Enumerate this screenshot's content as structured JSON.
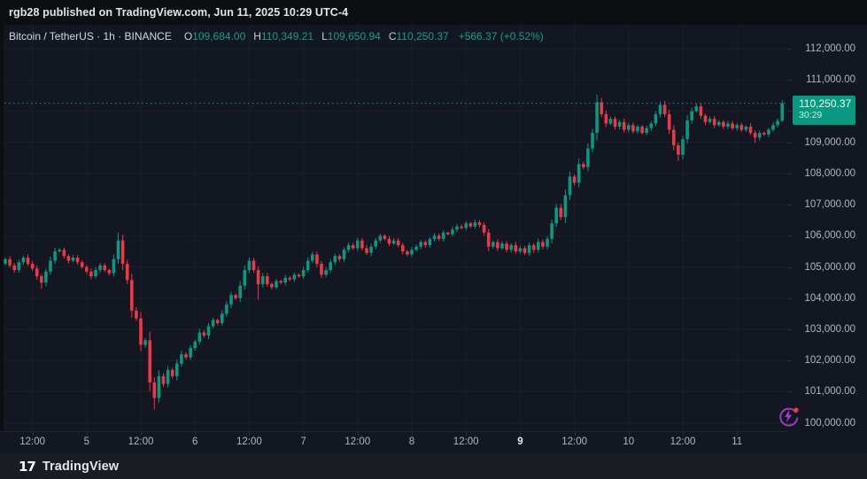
{
  "header": {
    "published_line": "rgb28 published on TradingView.com, Jun 11, 2025 10:29 UTC-4"
  },
  "legend": {
    "title": "Bitcoin / TetherUS · 1h · BINANCE",
    "ohlc": [
      {
        "label": "O",
        "value": "109,684.00"
      },
      {
        "label": "H",
        "value": "110,349.21"
      },
      {
        "label": "L",
        "value": "109,650.94"
      },
      {
        "label": "C",
        "value": "110,250.37"
      }
    ],
    "change": "+566.37 (+0.52%)"
  },
  "price_scale": {
    "ticks": [
      {
        "label": "112,000.00",
        "value": 112000
      },
      {
        "label": "111,000.00",
        "value": 111000
      },
      {
        "label": "110,000.00",
        "value": 110000
      },
      {
        "label": "109,000.00",
        "value": 109000
      },
      {
        "label": "108,000.00",
        "value": 108000
      },
      {
        "label": "107,000.00",
        "value": 107000
      },
      {
        "label": "106,000.00",
        "value": 106000
      },
      {
        "label": "105,000.00",
        "value": 105000
      },
      {
        "label": "104,000.00",
        "value": 104000
      },
      {
        "label": "103,000.00",
        "value": 103000
      },
      {
        "label": "102,000.00",
        "value": 102000
      },
      {
        "label": "101,000.00",
        "value": 101000
      },
      {
        "label": "100,000.00",
        "value": 100000
      }
    ],
    "last_price_label": "110,250.37",
    "countdown": "30:29"
  },
  "time_scale": {
    "ticks": [
      {
        "label": "12:00",
        "index": 6,
        "bold": false
      },
      {
        "label": "5",
        "index": 18,
        "bold": false
      },
      {
        "label": "12:00",
        "index": 30,
        "bold": false
      },
      {
        "label": "6",
        "index": 42,
        "bold": false
      },
      {
        "label": "12:00",
        "index": 54,
        "bold": false
      },
      {
        "label": "7",
        "index": 66,
        "bold": false
      },
      {
        "label": "12:00",
        "index": 78,
        "bold": false
      },
      {
        "label": "8",
        "index": 90,
        "bold": false
      },
      {
        "label": "12:00",
        "index": 102,
        "bold": false
      },
      {
        "label": "9",
        "index": 114,
        "bold": true
      },
      {
        "label": "12:00",
        "index": 126,
        "bold": false
      },
      {
        "label": "10",
        "index": 138,
        "bold": false
      },
      {
        "label": "12:00",
        "index": 150,
        "bold": false
      },
      {
        "label": "11",
        "index": 162,
        "bold": false
      }
    ]
  },
  "chart_data": {
    "type": "candlestick",
    "title": "Bitcoin / TetherUS",
    "exchange": "BINANCE",
    "interval": "1h",
    "x_axis": {
      "start": "Jun 4 2025 06:00",
      "end": "Jun 11 2025 10:00",
      "interval_hours": 1
    },
    "y_axis": {
      "min": 100000,
      "max": 112000,
      "step": 1000,
      "grid": true
    },
    "last_price": 110250.37,
    "current_candle": {
      "o": 109684.0,
      "h": 110349.21,
      "l": 109650.94,
      "c": 110250.37,
      "change": 566.37,
      "change_pct": 0.52
    },
    "first_open": 105100,
    "closes": [
      105250,
      105050,
      104900,
      105150,
      105300,
      105100,
      104950,
      104700,
      104500,
      104850,
      105200,
      105500,
      105550,
      105350,
      105200,
      105300,
      105150,
      105000,
      104850,
      104700,
      104900,
      105050,
      104900,
      104800,
      105250,
      105850,
      105100,
      104580,
      103600,
      103350,
      102500,
      102650,
      101300,
      100800,
      101500,
      101250,
      101700,
      101500,
      101900,
      102200,
      102100,
      102400,
      102600,
      102900,
      102800,
      103100,
      103300,
      103200,
      103500,
      103800,
      104100,
      104000,
      104400,
      104900,
      105200,
      104900,
      104450,
      104700,
      104450,
      104350,
      104550,
      104500,
      104650,
      104600,
      104750,
      104700,
      104900,
      105200,
      105400,
      105100,
      104750,
      104900,
      105150,
      105350,
      105250,
      105550,
      105700,
      105600,
      105850,
      105600,
      105450,
      105650,
      105850,
      106000,
      105900,
      105750,
      105850,
      105700,
      105500,
      105400,
      105550,
      105650,
      105800,
      105700,
      105900,
      106000,
      105900,
      106100,
      106050,
      106200,
      106300,
      106250,
      106400,
      106300,
      106430,
      106350,
      106100,
      105650,
      105800,
      105600,
      105750,
      105550,
      105700,
      105500,
      105600,
      105450,
      105700,
      105550,
      105800,
      105650,
      105900,
      106400,
      106900,
      106600,
      107300,
      107900,
      107700,
      108300,
      108200,
      108800,
      109300,
      110280,
      109900,
      109600,
      109750,
      109500,
      109650,
      109400,
      109550,
      109350,
      109500,
      109300,
      109450,
      109600,
      109900,
      110200,
      109900,
      109400,
      108900,
      108600,
      109100,
      109700,
      110000,
      110150,
      109850,
      109650,
      109750,
      109550,
      109650,
      109500,
      109600,
      109450,
      109550,
      109400,
      109500,
      109300,
      109150,
      109300,
      109250,
      109400,
      109550,
      109684,
      110250.37
    ],
    "high_overrides": {
      "25": 106100,
      "104": 106520,
      "131": 110530,
      "132": 110420,
      "145": 110300,
      "153": 110240
    },
    "low_overrides": {
      "8": 104300,
      "33": 100430,
      "34": 100650,
      "56": 103950,
      "149": 108400,
      "166": 108980
    },
    "colors": {
      "up": "#089981",
      "down": "#f23645",
      "last_price_line": "#089981",
      "grid": "#1b1f2a"
    }
  },
  "widgets": {
    "boost_icon": "lightning-boost-icon",
    "boost_colors": {
      "ring": "#a03cc8",
      "dot": "#f23645"
    }
  },
  "footer": {
    "logo_glyph": "17",
    "brand": "TradingView"
  }
}
